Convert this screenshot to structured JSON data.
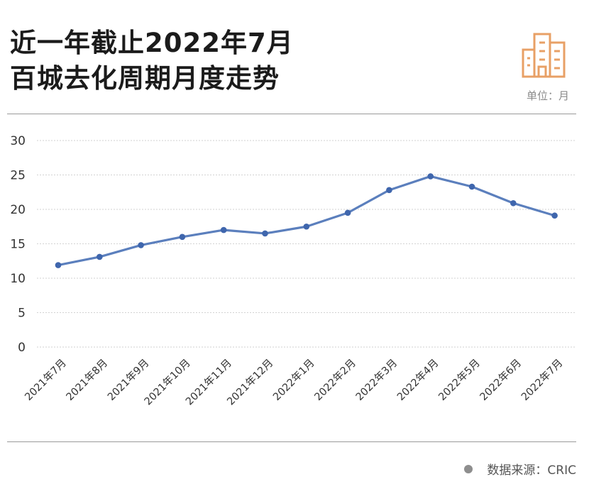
{
  "header": {
    "title_line1": "近一年截止2022年7月",
    "title_line2": "百城去化周期月度走势",
    "unit_label": "单位：月",
    "logo_icon": "city-buildings-icon"
  },
  "footer": {
    "source_label": "数据来源：CRIC"
  },
  "colors": {
    "line": "#5b7fbd",
    "marker": "#3f66ad",
    "logo": "#e8a066",
    "grid": "#d2d2d2",
    "axis_text": "#333333"
  },
  "chart_data": {
    "type": "line",
    "title": "近一年截止2022年7月 百城去化周期月度走势",
    "unit": "单位：月",
    "xlabel": "",
    "ylabel": "",
    "categories": [
      "2021年7月",
      "2021年8月",
      "2021年9月",
      "2021年10月",
      "2021年11月",
      "2021年12月",
      "2022年1月",
      "2022年2月",
      "2022年3月",
      "2022年4月",
      "2022年5月",
      "2022年6月",
      "2022年7月"
    ],
    "series": [
      {
        "values": [
          11.9,
          13.1,
          14.8,
          16.0,
          17.0,
          16.5,
          17.5,
          19.5,
          22.8,
          24.8,
          23.3,
          20.9,
          19.1
        ]
      }
    ],
    "ylim": [
      0,
      30
    ],
    "yticks": [
      0,
      5,
      10,
      15,
      20,
      25,
      30
    ],
    "grid": "horizontal dotted",
    "legend": "none",
    "source": "CRIC"
  }
}
